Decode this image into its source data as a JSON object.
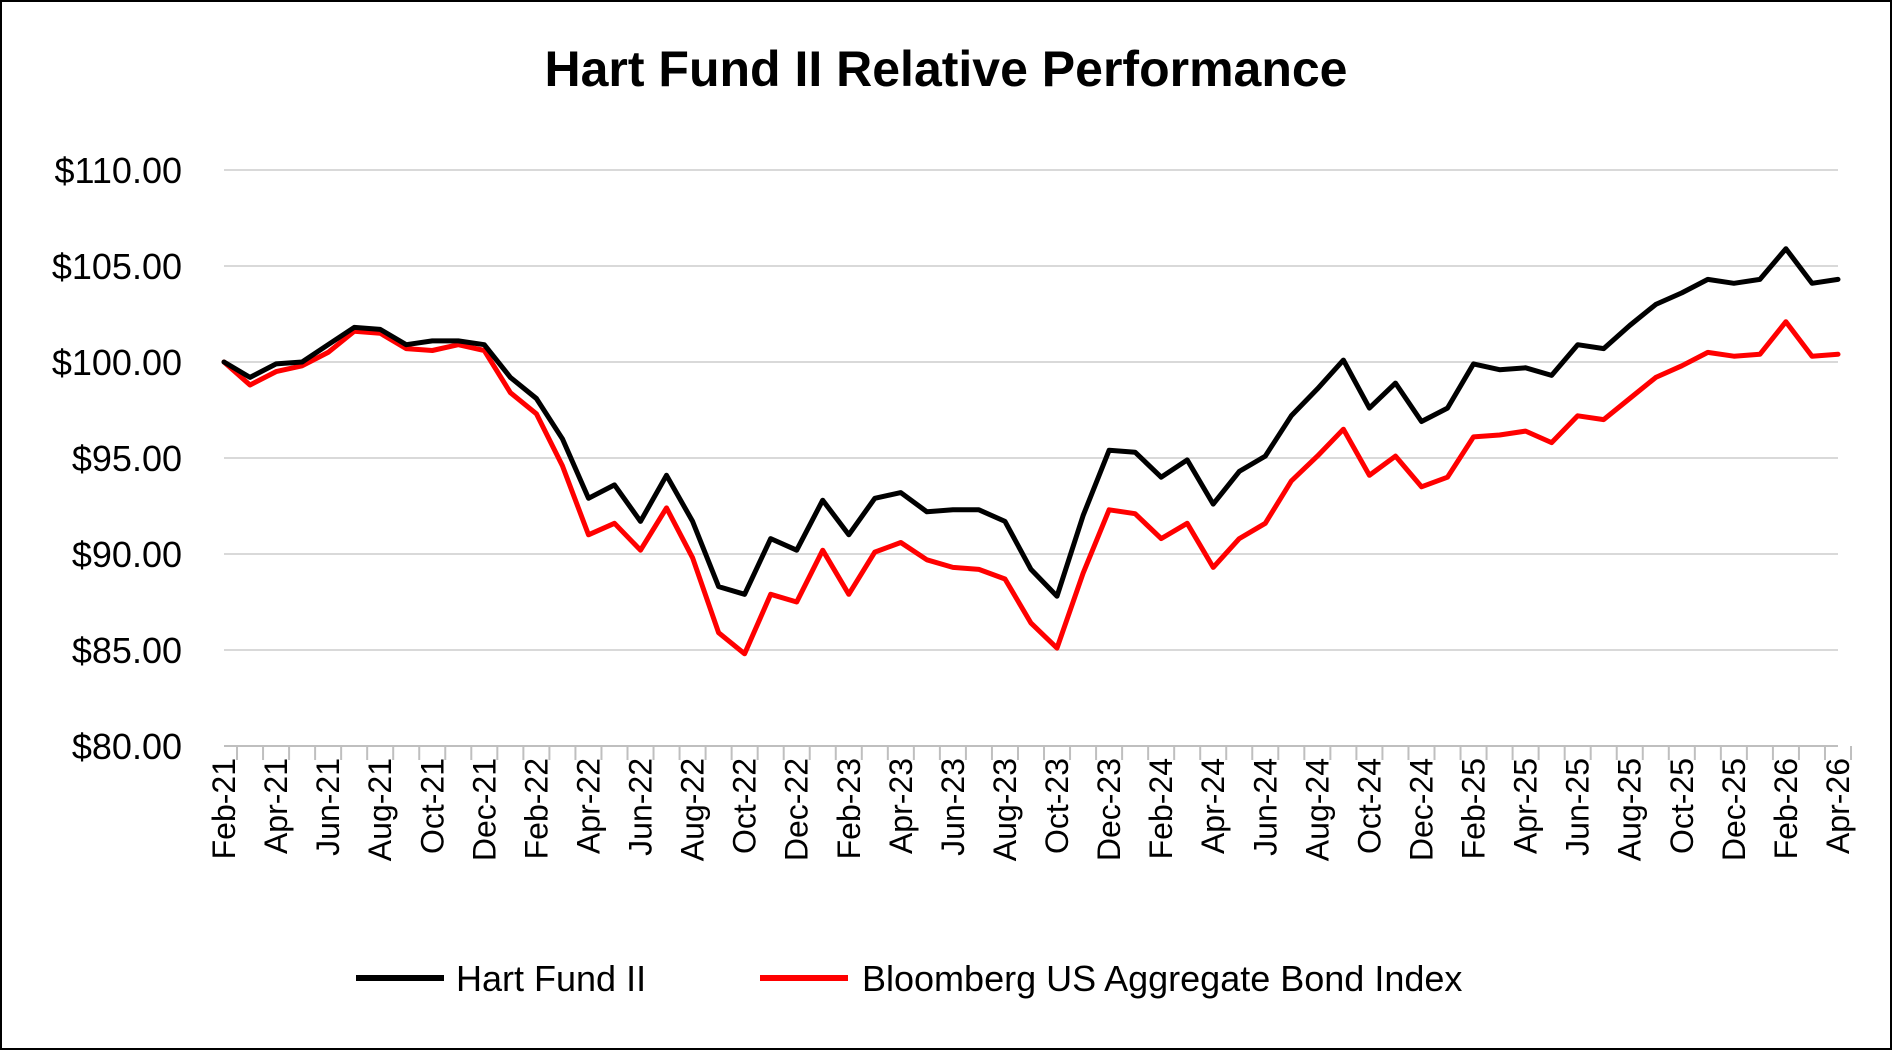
{
  "chart_data": {
    "type": "line",
    "title": "Hart Fund II Relative Performance",
    "xlabel": "",
    "ylabel": "",
    "ylim": [
      80,
      110
    ],
    "yticks": [
      "$80.00",
      "$85.00",
      "$90.00",
      "$95.00",
      "$100.00",
      "$105.00",
      "$110.00"
    ],
    "ytick_values": [
      80,
      85,
      90,
      95,
      100,
      105,
      110
    ],
    "xtick_labels": [
      "Feb-21",
      "Apr-21",
      "Jun-21",
      "Aug-21",
      "Oct-21",
      "Dec-21",
      "Feb-22",
      "Apr-22",
      "Jun-22",
      "Aug-22",
      "Oct-22",
      "Dec-22",
      "Feb-23",
      "Apr-23",
      "Jun-23",
      "Aug-23",
      "Oct-23",
      "Dec-23",
      "Feb-24",
      "Apr-24",
      "Jun-24",
      "Aug-24",
      "Oct-24",
      "Dec-24",
      "Feb-25",
      "Apr-25",
      "Jun-25",
      "Aug-25",
      "Oct-25",
      "Dec-25",
      "Feb-26",
      "Apr-26"
    ],
    "x": [
      "Feb-21",
      "Mar-21",
      "Apr-21",
      "May-21",
      "Jun-21",
      "Jul-21",
      "Aug-21",
      "Sep-21",
      "Oct-21",
      "Nov-21",
      "Dec-21",
      "Jan-22",
      "Feb-22",
      "Mar-22",
      "Apr-22",
      "May-22",
      "Jun-22",
      "Jul-22",
      "Aug-22",
      "Sep-22",
      "Oct-22",
      "Nov-22",
      "Dec-22",
      "Jan-23",
      "Feb-23",
      "Mar-23",
      "Apr-23",
      "May-23",
      "Jun-23",
      "Jul-23",
      "Aug-23",
      "Sep-23",
      "Oct-23",
      "Nov-23",
      "Dec-23",
      "Jan-24",
      "Feb-24",
      "Mar-24",
      "Apr-24",
      "May-24",
      "Jun-24",
      "Jul-24",
      "Aug-24",
      "Sep-24",
      "Oct-24",
      "Nov-24",
      "Dec-24",
      "Jan-25",
      "Feb-25",
      "Mar-25",
      "Apr-25",
      "May-25",
      "Jun-25",
      "Jul-25",
      "Aug-25",
      "Sep-25",
      "Oct-25",
      "Nov-25",
      "Dec-25",
      "Jan-26",
      "Feb-26",
      "Mar-26",
      "Apr-26"
    ],
    "grid": true,
    "legend_position": "bottom",
    "series": [
      {
        "name": "Hart Fund II",
        "color": "#000000",
        "values": [
          100.0,
          99.2,
          99.9,
          100.0,
          100.9,
          101.8,
          101.7,
          100.9,
          101.1,
          101.1,
          100.9,
          99.2,
          98.1,
          96.0,
          92.9,
          93.6,
          91.7,
          94.1,
          91.7,
          88.3,
          87.9,
          90.8,
          90.2,
          92.8,
          91.0,
          92.9,
          93.2,
          92.2,
          92.3,
          92.3,
          91.7,
          89.2,
          87.8,
          92.0,
          95.4,
          95.3,
          94.0,
          94.9,
          92.6,
          94.3,
          95.1,
          97.2,
          98.6,
          100.1,
          97.6,
          98.9,
          96.9,
          97.6,
          99.9,
          99.6,
          99.7,
          99.3,
          100.9,
          100.7,
          101.9,
          103.0,
          103.6,
          104.3,
          104.1,
          104.3,
          105.9,
          104.1,
          104.3
        ]
      },
      {
        "name": "Bloomberg US Aggregate Bond Index",
        "color": "#ff0000",
        "values": [
          100.0,
          98.8,
          99.5,
          99.8,
          100.5,
          101.6,
          101.5,
          100.7,
          100.6,
          100.9,
          100.6,
          98.4,
          97.3,
          94.6,
          91.0,
          91.6,
          90.2,
          92.4,
          89.8,
          85.9,
          84.8,
          87.9,
          87.5,
          90.2,
          87.9,
          90.1,
          90.6,
          89.7,
          89.3,
          89.2,
          88.7,
          86.4,
          85.1,
          89.0,
          92.3,
          92.1,
          90.8,
          91.6,
          89.3,
          90.8,
          91.6,
          93.8,
          95.1,
          96.5,
          94.1,
          95.1,
          93.5,
          94.0,
          96.1,
          96.2,
          96.4,
          95.8,
          97.2,
          97.0,
          98.1,
          99.2,
          99.8,
          100.5,
          100.3,
          100.4,
          102.1,
          100.3,
          100.4
        ]
      }
    ]
  }
}
